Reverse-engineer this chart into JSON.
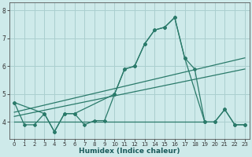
{
  "xlabel": "Humidex (Indice chaleur)",
  "background_color": "#ceeaea",
  "grid_color": "#aacfcf",
  "line_color": "#2a7a6a",
  "xlim": [
    -0.5,
    23.5
  ],
  "ylim": [
    3.4,
    8.3
  ],
  "yticks": [
    4,
    5,
    6,
    7,
    8
  ],
  "xticks": [
    0,
    1,
    2,
    3,
    4,
    5,
    6,
    7,
    8,
    9,
    10,
    11,
    12,
    13,
    14,
    15,
    16,
    17,
    18,
    19,
    20,
    21,
    22,
    23
  ],
  "series_main": {
    "x": [
      0,
      1,
      2,
      3,
      4,
      5,
      6,
      7,
      8,
      9,
      10,
      11,
      12,
      13,
      14,
      15,
      16,
      17,
      18,
      19,
      20,
      21,
      22,
      23
    ],
    "y": [
      4.7,
      3.9,
      3.9,
      4.3,
      3.65,
      4.3,
      4.3,
      3.9,
      4.05,
      4.05,
      5.0,
      5.9,
      6.0,
      6.8,
      7.3,
      7.4,
      7.75,
      6.3,
      5.9,
      4.0,
      4.0,
      4.45,
      3.9,
      3.9
    ]
  },
  "series_smooth": {
    "x": [
      0,
      3,
      4,
      5,
      6,
      10,
      11,
      12,
      13,
      14,
      15,
      16,
      17,
      19,
      20,
      21,
      22,
      23
    ],
    "y": [
      4.7,
      4.3,
      3.65,
      4.3,
      4.3,
      5.0,
      5.9,
      6.0,
      6.8,
      7.3,
      7.4,
      7.75,
      6.3,
      4.0,
      4.0,
      4.45,
      3.9,
      3.9
    ]
  },
  "trend1": {
    "x": [
      0,
      23
    ],
    "y": [
      4.35,
      6.3
    ]
  },
  "trend2": {
    "x": [
      0,
      23
    ],
    "y": [
      4.2,
      5.9
    ]
  },
  "flat_line": {
    "x": [
      0,
      19
    ],
    "y": [
      4.0,
      4.0
    ]
  }
}
